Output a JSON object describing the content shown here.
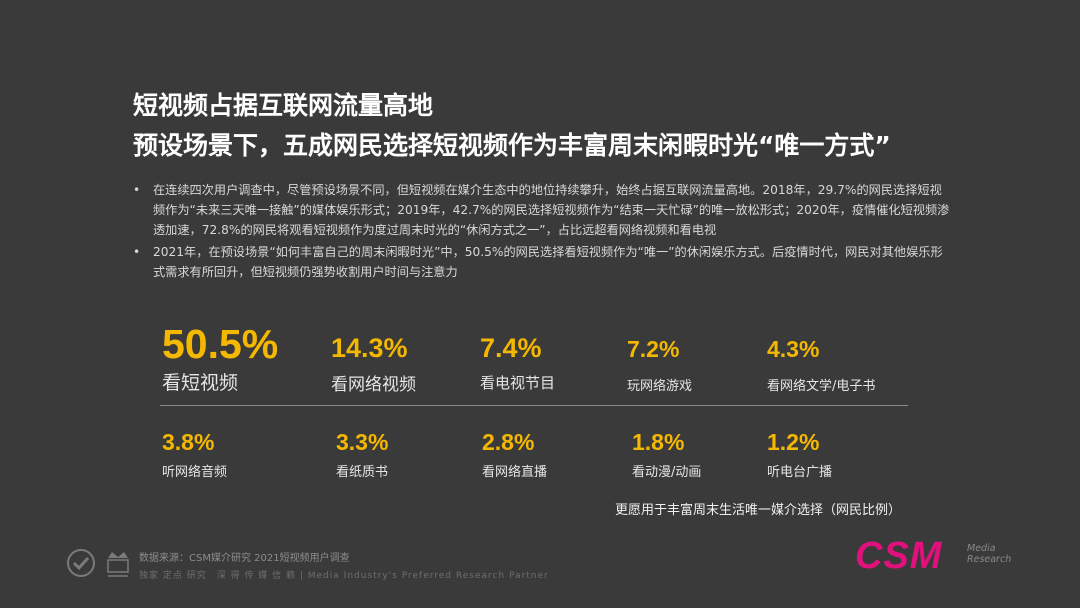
{
  "title_line1": "短视频占据互联网流量高地",
  "title_line2": "预设场景下，五成网民选择短视频作为丰富周末闲暇时光“唯一方式”",
  "bullets": [
    "在连续四次用户调查中，尽管预设场景不同，但短视频在媒介生态中的地位持续攀升，始终占据互联网流量高地。2018年，29.7%的网民选择短视频作为“未来三天唯一接触”的媒体娱乐形式；2019年，42.7%的网民选择短视频作为“结束一天忙碌”的唯一放松形式；2020年，疫情催化短视频渗透加速，72.8%的网民将观看短视频作为度过周末时光的“休闲方式之一”，占比远超看网络视频和看电视",
    "2021年，在预设场景“如何丰富自己的周末闲暇时光”中，50.5%的网民选择看短视频作为“唯一”的休闲娱乐方式。后疫情时代，网民对其他娱乐形式需求有所回升，但短视频仍强势收割用户时间与注意力"
  ],
  "bullet_marker": "•",
  "stats_row1": [
    {
      "value": "50.5%",
      "label": "看短视频"
    },
    {
      "value": "14.3%",
      "label": "看网络视频"
    },
    {
      "value": "7.4%",
      "label": "看电视节目"
    },
    {
      "value": "7.2%",
      "label": "玩网络游戏"
    },
    {
      "value": "4.3%",
      "label": "看网络文学/电子书"
    }
  ],
  "stats_row2": [
    {
      "value": "3.8%",
      "label": "听网络音频"
    },
    {
      "value": "3.3%",
      "label": "看纸质书"
    },
    {
      "value": "2.8%",
      "label": "看网络直播"
    },
    {
      "value": "1.8%",
      "label": "看动漫/动画"
    },
    {
      "value": "1.2%",
      "label": "听电台广播"
    }
  ],
  "caption": "更愿用于丰富周末生活唯一媒介选择（网民比例）",
  "source": "数据来源：CSM媒介研究 2021短视频用户调查",
  "tagline": "独家 定点 研究　深 得 传 媒 信 赖 | Media Industry's Preferred Research Partner",
  "logo": {
    "text": "CSM",
    "sub1": "Media",
    "sub2": "Research",
    "color": "#e0117c"
  },
  "colors": {
    "background": "#3a3a3a",
    "accent": "#f5b800"
  }
}
